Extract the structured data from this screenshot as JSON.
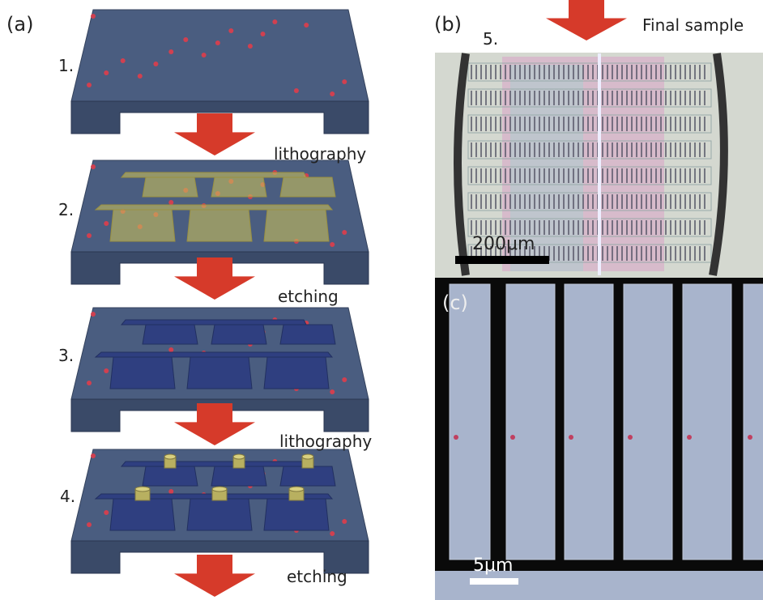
{
  "panel_a": {
    "label": "(a)",
    "step_numbers": [
      "1.",
      "2.",
      "3.",
      "4."
    ],
    "step_labels": [
      "lithography",
      "etching",
      "lithography",
      "etching"
    ]
  },
  "panel_b": {
    "label": "(b)",
    "step_number": "5.",
    "caption": "Final sample",
    "scale_bar": "200μm"
  },
  "panel_c": {
    "label": "(c)",
    "scale_bar": "5μm"
  }
}
